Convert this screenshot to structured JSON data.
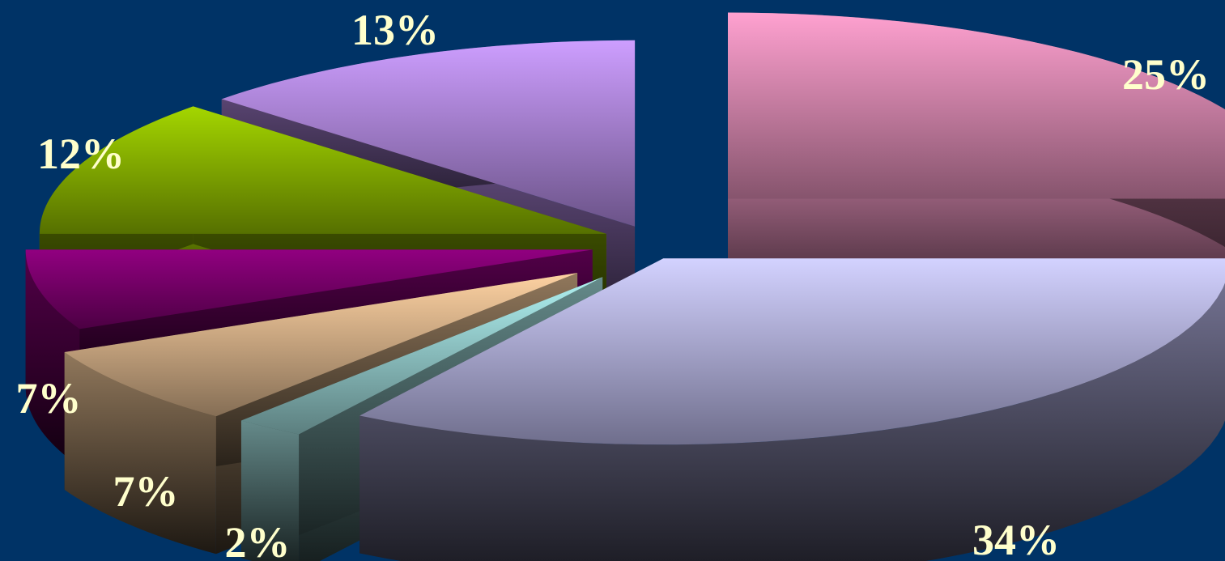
{
  "chart_data": {
    "type": "pie",
    "style": "3d-exploded",
    "background": "#003366",
    "label_color": "#ffffcc",
    "slices": [
      {
        "id": "slice-pink",
        "value": 25,
        "label": "25%",
        "color": "#f399c6"
      },
      {
        "id": "slice-lilac",
        "value": 34,
        "label": "34%",
        "color": "#c9c8ff"
      },
      {
        "id": "slice-teal",
        "value": 2,
        "label": "2%",
        "color": "#a8e6e6"
      },
      {
        "id": "slice-peach",
        "value": 7,
        "label": "7%",
        "color": "#f2c89a"
      },
      {
        "id": "slice-purple",
        "value": 7,
        "label": "7%",
        "color": "#8a007a"
      },
      {
        "id": "slice-green",
        "value": 12,
        "label": "12%",
        "color": "#9ccc00"
      },
      {
        "id": "slice-violet",
        "value": 13,
        "label": "13%",
        "color": "#c396f8"
      }
    ]
  }
}
